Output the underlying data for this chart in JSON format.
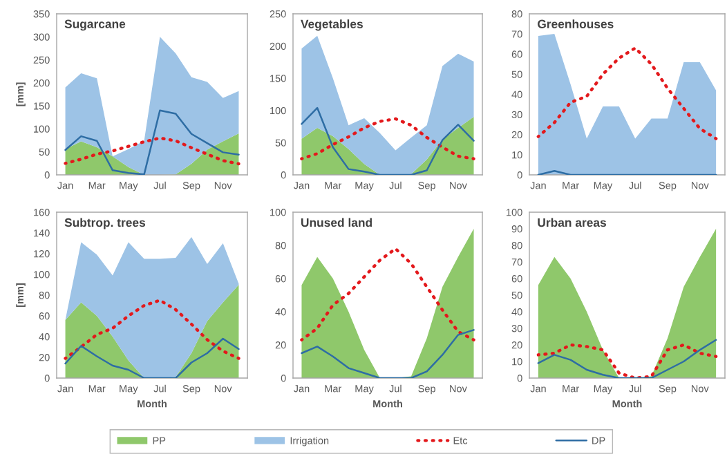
{
  "chart_data": [
    {
      "type": "area",
      "title": "Sugarcane",
      "ylabel": "[mm]",
      "stacked": true,
      "legend": "bottom",
      "categories": [
        "Jan",
        null,
        "Mar",
        null,
        "May",
        null,
        "Jul",
        null,
        "Sep",
        null,
        "Nov",
        null
      ],
      "ylim": [
        0,
        350
      ],
      "yticks": [
        0,
        50,
        100,
        150,
        200,
        250,
        300,
        350
      ],
      "series": [
        {
          "name": "PP",
          "color": "#8fc86b",
          "values": [
            56,
            73,
            60,
            40,
            17,
            0,
            0,
            1,
            24,
            55,
            73,
            90
          ]
        },
        {
          "name": "Irrigation",
          "color": "#9dc3e6",
          "values": [
            134,
            148,
            150,
            0,
            39,
            74,
            300,
            263,
            188,
            147,
            94,
            92
          ]
        },
        {
          "name": "Etc",
          "type": "line",
          "line_style": "dotted",
          "color": "#e3191c",
          "values": [
            25,
            34,
            45,
            52,
            62,
            72,
            80,
            74,
            59,
            45,
            31,
            24
          ]
        },
        {
          "name": "DP",
          "type": "line",
          "line_style": "solid",
          "color": "#2e6da4",
          "values": [
            54,
            84,
            74,
            10,
            4,
            1,
            140,
            133,
            89,
            69,
            49,
            44
          ]
        }
      ]
    },
    {
      "type": "area",
      "title": "Vegetables",
      "stacked": true,
      "categories": [
        "Jan",
        null,
        "Mar",
        null,
        "May",
        null,
        "Jul",
        null,
        "Sep",
        null,
        "Nov",
        null
      ],
      "ylim": [
        0,
        250
      ],
      "yticks": [
        0,
        50,
        100,
        150,
        200,
        250
      ],
      "series": [
        {
          "name": "PP",
          "color": "#8fc86b",
          "values": [
            56,
            73,
            60,
            40,
            17,
            0,
            0,
            1,
            24,
            55,
            73,
            90
          ]
        },
        {
          "name": "Irrigation",
          "color": "#9dc3e6",
          "values": [
            140,
            143,
            90,
            37,
            71,
            65,
            38,
            57,
            53,
            114,
            115,
            86
          ]
        },
        {
          "name": "Etc",
          "type": "line",
          "line_style": "dotted",
          "color": "#e3191c",
          "values": [
            25,
            33,
            47,
            59,
            73,
            83,
            87,
            77,
            58,
            43,
            29,
            25
          ]
        },
        {
          "name": "DP",
          "type": "line",
          "line_style": "solid",
          "color": "#2e6da4",
          "values": [
            79,
            104,
            43,
            9,
            5,
            0,
            0,
            0,
            7,
            54,
            78,
            53
          ]
        }
      ]
    },
    {
      "type": "area",
      "title": "Greenhouses",
      "stacked": true,
      "categories": [
        "Jan",
        null,
        "Mar",
        null,
        "May",
        null,
        "Jul",
        null,
        "Sep",
        null,
        "Nov",
        null
      ],
      "ylim": [
        0,
        80
      ],
      "yticks": [
        0,
        10,
        20,
        30,
        40,
        50,
        60,
        70,
        80
      ],
      "series": [
        {
          "name": "Irrigation",
          "color": "#9dc3e6",
          "values": [
            69,
            70,
            45,
            18,
            34,
            34,
            18,
            28,
            28,
            56,
            56,
            42
          ]
        },
        {
          "name": "Etc",
          "type": "line",
          "line_style": "dotted",
          "color": "#e3191c",
          "values": [
            19,
            26,
            36,
            39,
            50,
            58,
            63,
            55,
            43,
            33,
            23,
            18
          ]
        },
        {
          "name": "DP",
          "type": "line",
          "line_style": "solid",
          "color": "#2e6da4",
          "values": [
            0,
            2,
            0,
            0,
            0,
            0,
            0,
            0,
            0,
            0,
            0,
            0
          ]
        }
      ]
    },
    {
      "type": "area",
      "title": "Subtrop. trees",
      "xlabel": "Month",
      "ylabel": "[mm]",
      "stacked": true,
      "categories": [
        "Jan",
        null,
        "Mar",
        null,
        "May",
        null,
        "Jul",
        null,
        "Sep",
        null,
        "Nov",
        null
      ],
      "ylim": [
        0,
        160
      ],
      "yticks": [
        0,
        20,
        40,
        60,
        80,
        100,
        120,
        140,
        160
      ],
      "series": [
        {
          "name": "PP",
          "color": "#8fc86b",
          "values": [
            56,
            73,
            60,
            40,
            17,
            0,
            0,
            1,
            24,
            55,
            73,
            90
          ]
        },
        {
          "name": "Irrigation",
          "color": "#9dc3e6",
          "values": [
            0,
            58,
            59,
            59,
            114,
            115,
            115,
            115,
            112,
            55,
            57,
            1
          ]
        },
        {
          "name": "Etc",
          "type": "line",
          "line_style": "dotted",
          "color": "#e3191c",
          "values": [
            19,
            30,
            42,
            48,
            60,
            70,
            75,
            66,
            52,
            37,
            26,
            19
          ]
        },
        {
          "name": "DP",
          "type": "line",
          "line_style": "solid",
          "color": "#2e6da4",
          "values": [
            14,
            31,
            21,
            12,
            8,
            0,
            0,
            0,
            15,
            24,
            38,
            28
          ]
        }
      ]
    },
    {
      "type": "area",
      "title": "Unused land",
      "xlabel": "Month",
      "stacked": true,
      "categories": [
        "Jan",
        null,
        "Mar",
        null,
        "May",
        null,
        "Jul",
        null,
        "Sep",
        null,
        "Nov",
        null
      ],
      "ylim": [
        0,
        100
      ],
      "yticks": [
        0,
        20,
        40,
        60,
        80,
        100
      ],
      "series": [
        {
          "name": "PP",
          "color": "#8fc86b",
          "values": [
            56,
            73,
            60,
            40,
            17,
            0,
            0,
            1,
            24,
            55,
            73,
            90
          ]
        },
        {
          "name": "Etc",
          "type": "line",
          "line_style": "dotted",
          "color": "#e3191c",
          "values": [
            23,
            30,
            44,
            51,
            61,
            71,
            78,
            69,
            55,
            41,
            28,
            23
          ]
        },
        {
          "name": "DP",
          "type": "line",
          "line_style": "solid",
          "color": "#2e6da4",
          "values": [
            15,
            19,
            13,
            6,
            3,
            0,
            0,
            0,
            4,
            14,
            26,
            29
          ]
        }
      ]
    },
    {
      "type": "area",
      "title": "Urban areas",
      "xlabel": "Month",
      "stacked": true,
      "categories": [
        "Jan",
        null,
        "Mar",
        null,
        "May",
        null,
        "Jul",
        null,
        "Sep",
        null,
        "Nov",
        null
      ],
      "ylim": [
        0,
        100
      ],
      "yticks": [
        0,
        10,
        20,
        30,
        40,
        50,
        60,
        70,
        80,
        90,
        100
      ],
      "series": [
        {
          "name": "PP",
          "color": "#8fc86b",
          "values": [
            56,
            73,
            60,
            40,
            17,
            0,
            0,
            1,
            24,
            55,
            73,
            90
          ]
        },
        {
          "name": "Etc",
          "type": "line",
          "line_style": "dotted",
          "color": "#e3191c",
          "values": [
            14,
            15,
            20,
            19,
            17,
            3,
            0,
            1,
            17,
            20,
            15,
            13
          ]
        },
        {
          "name": "DP",
          "type": "line",
          "line_style": "solid",
          "color": "#2e6da4",
          "values": [
            9,
            14,
            11,
            5,
            2,
            0,
            0,
            0,
            5,
            10,
            17,
            23
          ]
        }
      ]
    }
  ]
}
